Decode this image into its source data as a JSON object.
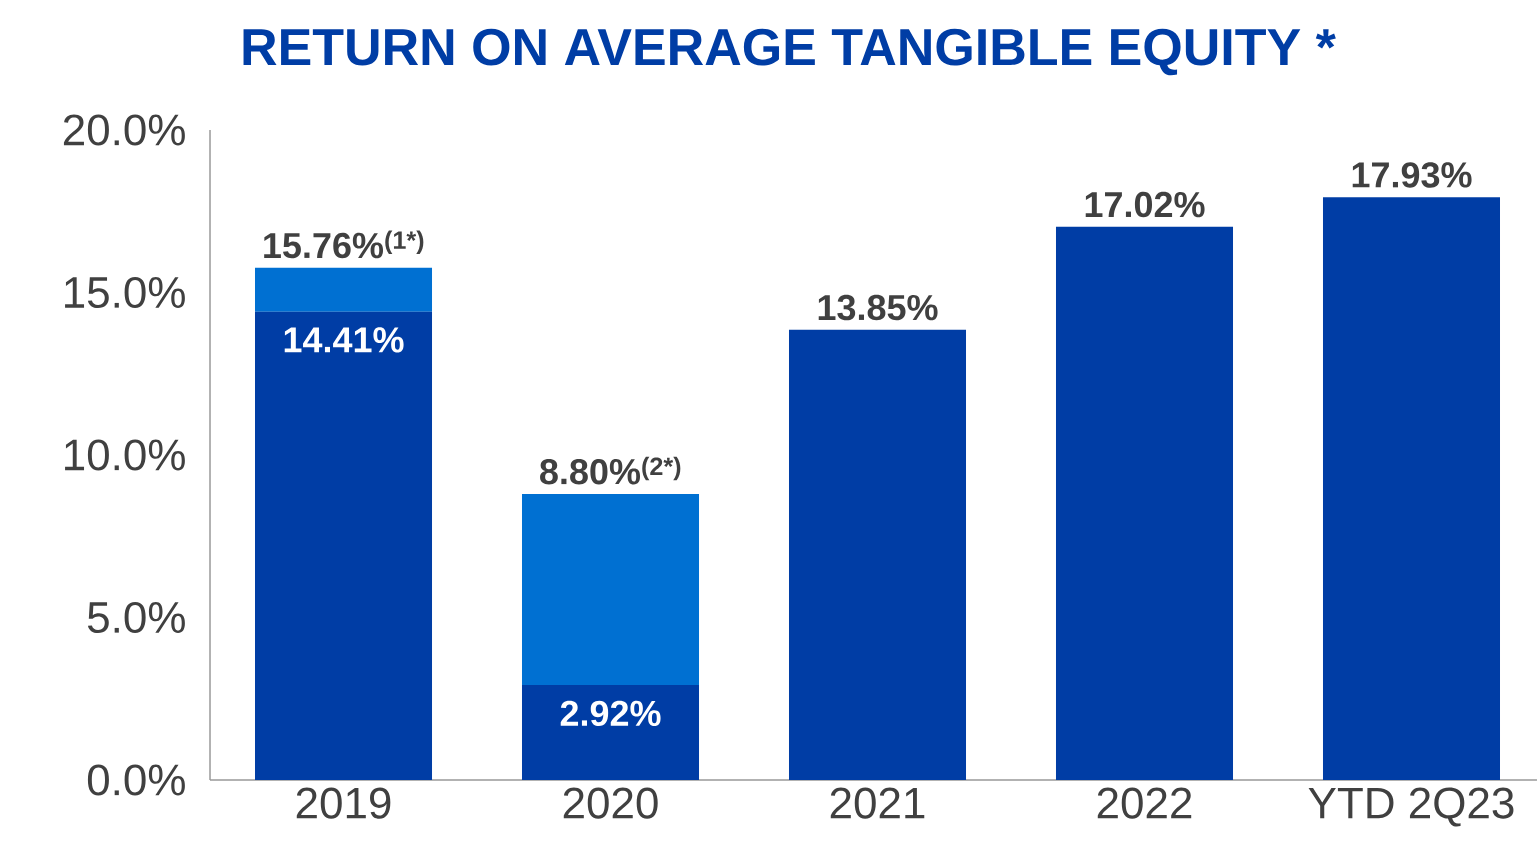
{
  "chart_data": {
    "type": "bar",
    "title": "RETURN ON AVERAGE TANGIBLE EQUITY *",
    "stacked": true,
    "categories": [
      "2019",
      "2020",
      "2021",
      "2022",
      "YTD 2Q23"
    ],
    "series": [
      {
        "color": "#003da5",
        "values": [
          14.41,
          2.92,
          13.85,
          17.02,
          17.93
        ],
        "value_labels": [
          "14.41%",
          "2.92%",
          null,
          null,
          null
        ]
      },
      {
        "color": "#0070d2",
        "values": [
          1.35,
          5.88,
          null,
          null,
          null
        ]
      }
    ],
    "totals": [
      "15.76%$^{(1*)}$",
      "8.80%$^{(2*)}$",
      "13.85%",
      "17.02%",
      "17.93%"
    ],
    "ylim": [
      0,
      20
    ],
    "yticks": [
      {
        "value": 0,
        "label": "0.0%"
      },
      {
        "value": 5,
        "label": "5.0%"
      },
      {
        "value": 10,
        "label": "10.0%"
      },
      {
        "value": 15,
        "label": "15.0%"
      },
      {
        "value": 20,
        "label": "20.0%"
      }
    ],
    "grid": false
  }
}
